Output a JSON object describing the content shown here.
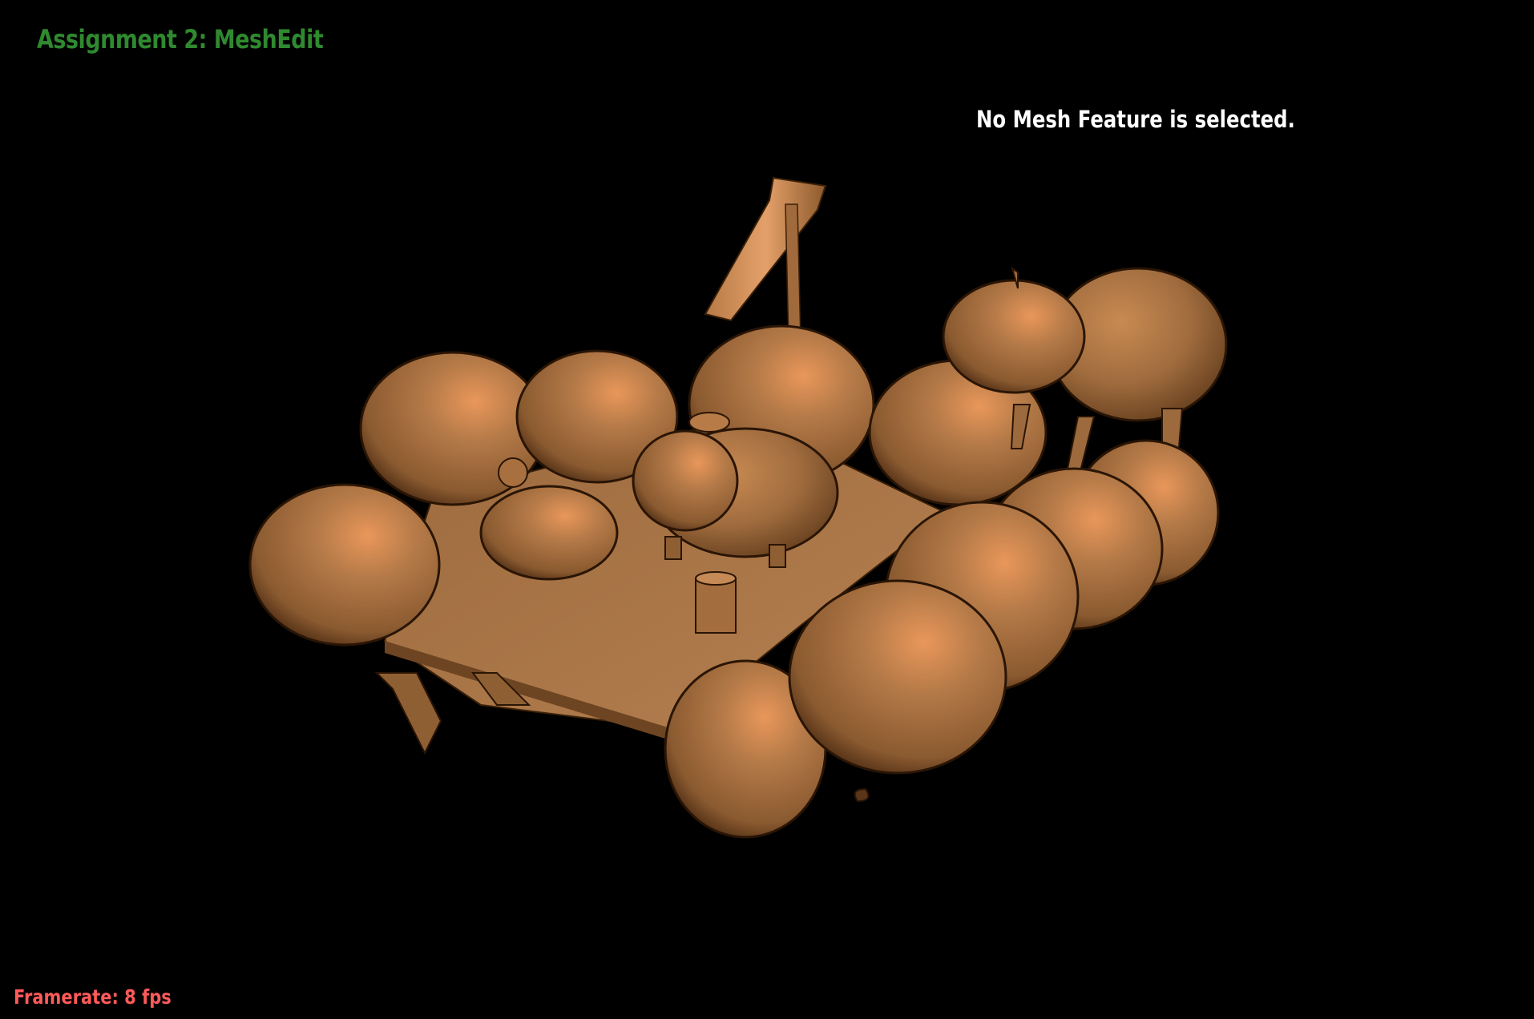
{
  "app": {
    "title": "Assignment 2: MeshEdit"
  },
  "overlay": {
    "selection_status": "No Mesh Feature is selected.",
    "framerate_label": "Framerate: 8 fps"
  },
  "scene": {
    "description_icon": "mesh-render",
    "material_color": "#b07a4a"
  },
  "colors": {
    "background": "#000000",
    "title": "#2f8a2f",
    "status": "#ffffff",
    "framerate": "#ff5a5a",
    "mesh_base": "#b07a4a",
    "mesh_highlight": "#f0a060",
    "mesh_shadow": "#5a3518"
  }
}
